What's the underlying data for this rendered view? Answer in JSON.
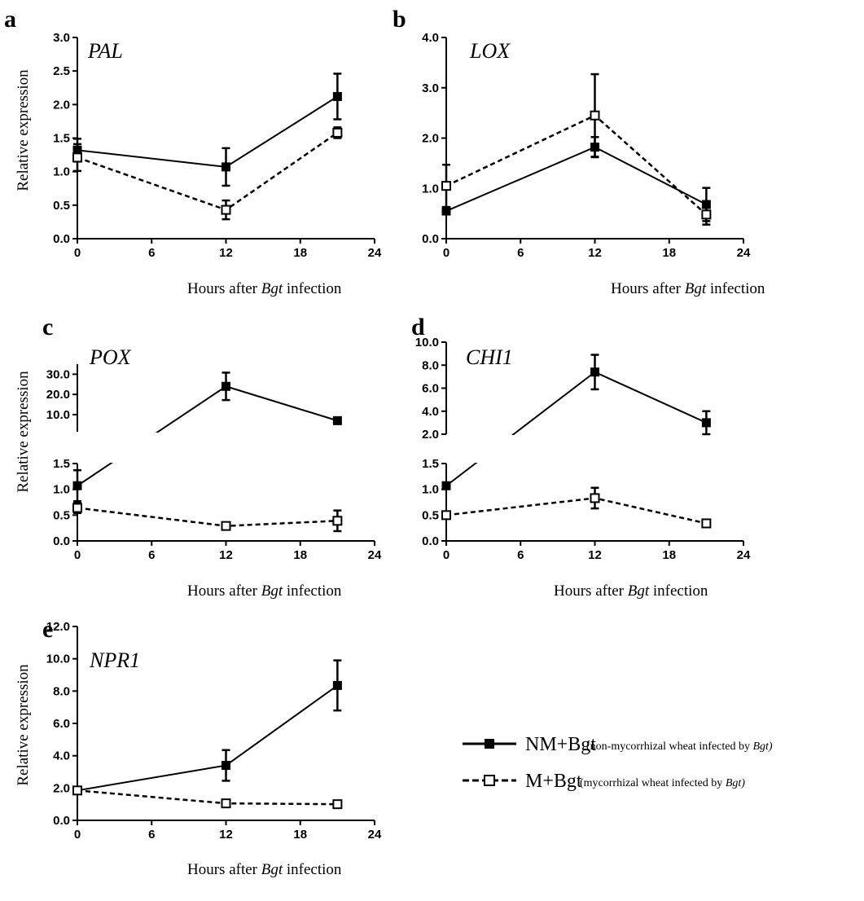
{
  "legend": {
    "items": [
      {
        "key": "NM",
        "text": "NM+Bgt",
        "note_pre": "(non-mycorrhizal wheat infected by ",
        "note_italic": "Bgt)",
        "note_post": ""
      },
      {
        "key": "M",
        "text": "M+Bgt",
        "note_pre": "(mycorrhizal wheat infected by ",
        "note_italic": "Bgt)",
        "note_post": ""
      }
    ]
  },
  "chart_data": [
    {
      "type": "line",
      "panel": "a",
      "gene": "PAL",
      "ylabel": "Relative expression",
      "xlabel_pre": "Hours after ",
      "xlabel_italic": "Bgt",
      "xlabel_post": " infection",
      "xlim": [
        0,
        24
      ],
      "xticks": [
        0,
        6,
        12,
        18,
        24
      ],
      "x": [
        0,
        12,
        21
      ],
      "segments": [
        {
          "ylim": [
            0,
            3.0
          ],
          "yticks": [
            "0.0",
            "0.5",
            "1.0",
            "1.5",
            "2.0",
            "2.5",
            "3.0"
          ]
        }
      ],
      "series": [
        {
          "key": "NM",
          "y": [
            1.32,
            1.07,
            2.12
          ],
          "err": [
            0.17,
            0.28,
            0.34
          ]
        },
        {
          "key": "M",
          "y": [
            1.21,
            0.43,
            1.58
          ],
          "err": [
            0.2,
            0.14,
            0.08
          ]
        }
      ]
    },
    {
      "type": "line",
      "panel": "b",
      "gene": "LOX",
      "ylabel": "",
      "xlabel_pre": "Hours after ",
      "xlabel_italic": "Bgt",
      "xlabel_post": " infection",
      "xlim": [
        0,
        24
      ],
      "xticks": [
        0,
        6,
        12,
        18,
        24
      ],
      "x": [
        0,
        12,
        21
      ],
      "segments": [
        {
          "ylim": [
            0,
            4.0
          ],
          "yticks": [
            "0.0",
            "1.0",
            "2.0",
            "3.0",
            "4.0"
          ]
        }
      ],
      "series": [
        {
          "key": "NM",
          "y": [
            0.55,
            1.82,
            0.68
          ],
          "err": [
            0.05,
            0.2,
            0.33
          ]
        },
        {
          "key": "M",
          "y": [
            1.05,
            2.45,
            0.48
          ],
          "err": [
            0.42,
            0.82,
            0.2
          ]
        }
      ]
    },
    {
      "type": "line",
      "panel": "c",
      "gene": "POX",
      "ylabel": "Relative expression",
      "xlabel_pre": "Hours after ",
      "xlabel_italic": "Bgt",
      "xlabel_post": " infection",
      "xlim": [
        0,
        24
      ],
      "xticks": [
        0,
        6,
        12,
        18,
        24
      ],
      "x": [
        0,
        12,
        21
      ],
      "segments": [
        {
          "ylim": [
            0,
            1.5
          ],
          "yticks": [
            "0.0",
            "0.5",
            "1.0",
            "1.5"
          ]
        },
        {
          "ylim": [
            1.5,
            35
          ],
          "yticks": [
            "10.0",
            "20.0",
            "30.0"
          ]
        }
      ],
      "series": [
        {
          "key": "NM",
          "y": [
            1.07,
            24.0,
            7.0
          ],
          "err": [
            0.3,
            6.8,
            0
          ]
        },
        {
          "key": "M",
          "y": [
            0.64,
            0.29,
            0.39
          ],
          "err": [
            0.1,
            0.03,
            0.2
          ]
        }
      ]
    },
    {
      "type": "line",
      "panel": "d",
      "gene": "CHI1",
      "ylabel": "",
      "xlabel_pre": "Hours after ",
      "xlabel_italic": "Bgt",
      "xlabel_post": " infection",
      "xlim": [
        0,
        24
      ],
      "xticks": [
        0,
        6,
        12,
        18,
        24
      ],
      "x": [
        0,
        12,
        21
      ],
      "segments": [
        {
          "ylim": [
            0,
            1.5
          ],
          "yticks": [
            "0.0",
            "0.5",
            "1.0",
            "1.5"
          ]
        },
        {
          "ylim": [
            2.0,
            10.0
          ],
          "yticks": [
            "2.0",
            "4.0",
            "6.0",
            "8.0",
            "10.0"
          ]
        }
      ],
      "series": [
        {
          "key": "NM",
          "y": [
            1.07,
            7.4,
            3.0
          ],
          "err": [
            0.05,
            1.5,
            1.0
          ]
        },
        {
          "key": "M",
          "y": [
            0.5,
            0.83,
            0.34
          ],
          "err": [
            0.03,
            0.2,
            0.07
          ]
        }
      ]
    },
    {
      "type": "line",
      "panel": "e",
      "gene": "NPR1",
      "ylabel": "Relative expression",
      "xlabel_pre": "Hours after ",
      "xlabel_italic": "Bgt",
      "xlabel_post": " infection",
      "xlim": [
        0,
        24
      ],
      "xticks": [
        0,
        6,
        12,
        18,
        24
      ],
      "x": [
        0,
        12,
        21
      ],
      "segments": [
        {
          "ylim": [
            0,
            12.0
          ],
          "yticks": [
            "0.0",
            "2.0",
            "4.0",
            "6.0",
            "8.0",
            "10.0",
            "12.0"
          ]
        }
      ],
      "series": [
        {
          "key": "NM",
          "y": [
            1.85,
            3.4,
            8.35
          ],
          "err": [
            0.1,
            0.95,
            1.55
          ]
        },
        {
          "key": "M",
          "y": [
            1.85,
            1.05,
            1.0
          ],
          "err": [
            0.1,
            0.05,
            0.05
          ]
        }
      ]
    }
  ]
}
